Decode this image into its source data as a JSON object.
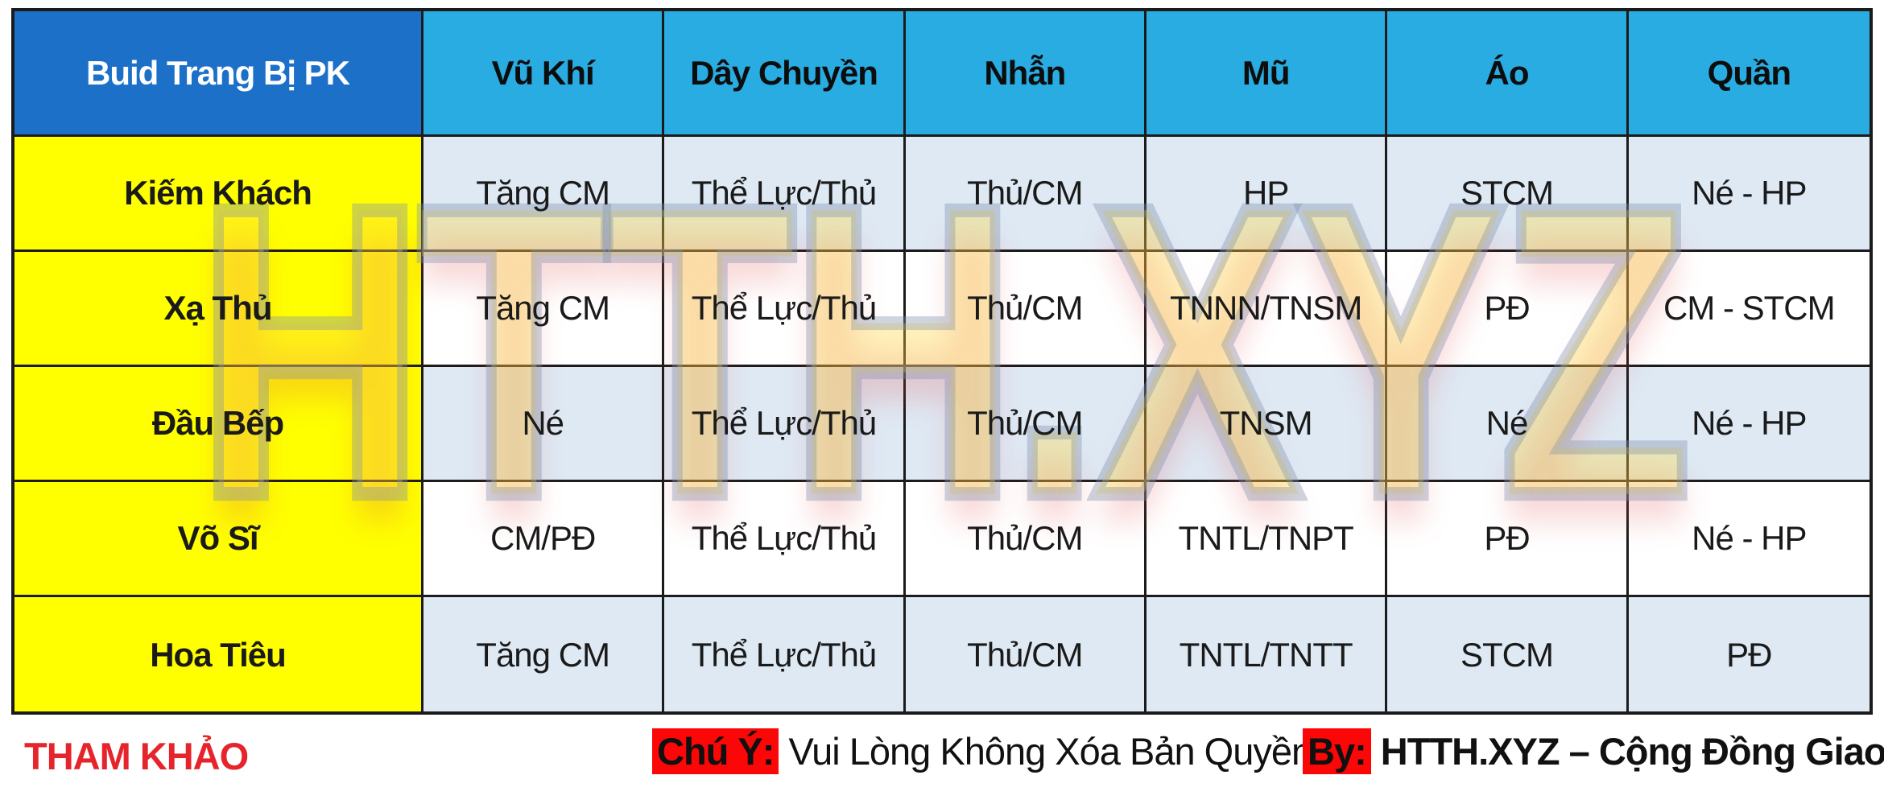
{
  "table": {
    "header": [
      "Buid Trang Bị PK",
      "Vũ Khí",
      "Dây Chuyền",
      "Nhẫn",
      "Mũ",
      "Áo",
      "Quần"
    ],
    "rows": [
      {
        "label": "Kiếm Khách",
        "cells": [
          "Tăng CM",
          "Thể Lực/Thủ",
          "Thủ/CM",
          "HP",
          "STCM",
          "Né - HP"
        ]
      },
      {
        "label": "Xạ Thủ",
        "cells": [
          "Tăng CM",
          "Thể Lực/Thủ",
          "Thủ/CM",
          "TNNN/TNSM",
          "PĐ",
          "CM - STCM"
        ]
      },
      {
        "label": "Đầu Bếp",
        "cells": [
          "Né",
          "Thể Lực/Thủ",
          "Thủ/CM",
          "TNSM",
          "Né",
          "Né - HP"
        ]
      },
      {
        "label": "Võ Sĩ",
        "cells": [
          "CM/PĐ",
          "Thể Lực/Thủ",
          "Thủ/CM",
          "TNTL/TNPT",
          "PĐ",
          "Né - HP"
        ]
      },
      {
        "label": "Hoa Tiêu",
        "cells": [
          "Tăng CM",
          "Thể Lực/Thủ",
          "Thủ/CM",
          "TNTL/TNTT",
          "STCM",
          "PĐ"
        ]
      }
    ]
  },
  "watermark": "HTTH.XYZ",
  "footer": {
    "reference": "THAM KHẢO",
    "note_label": "Chú Ý:",
    "note_text": "Vui Lòng Không Xóa Bản Quyền",
    "by_label": "By:",
    "by_text": "HTTH.XYZ – Cộng Đồng Giao Lưu HTTH"
  },
  "colors": {
    "header_dark_blue": "#1d70c8",
    "header_blue": "#29ace2",
    "label_yellow": "#ffff00",
    "row_alt_blue": "#dee9f4",
    "row_white": "#ffffff",
    "border_black": "#1b1b1b",
    "reference_red": "#e6242b",
    "highlight_red": "#fb0707",
    "watermark_yellow": "#ffdb40"
  },
  "chart_data": {
    "type": "table",
    "title": "Buid Trang Bị PK",
    "columns": [
      "Buid Trang Bị PK",
      "Vũ Khí",
      "Dây Chuyền",
      "Nhẫn",
      "Mũ",
      "Áo",
      "Quần"
    ],
    "rows": [
      [
        "Kiếm Khách",
        "Tăng CM",
        "Thể Lực/Thủ",
        "Thủ/CM",
        "HP",
        "STCM",
        "Né - HP"
      ],
      [
        "Xạ Thủ",
        "Tăng CM",
        "Thể Lực/Thủ",
        "Thủ/CM",
        "TNNN/TNSM",
        "PĐ",
        "CM - STCM"
      ],
      [
        "Đầu Bếp",
        "Né",
        "Thể Lực/Thủ",
        "Thủ/CM",
        "TNSM",
        "Né",
        "Né - HP"
      ],
      [
        "Võ Sĩ",
        "CM/PĐ",
        "Thể Lực/Thủ",
        "Thủ/CM",
        "TNTL/TNPT",
        "PĐ",
        "Né - HP"
      ],
      [
        "Hoa Tiêu",
        "Tăng CM",
        "Thể Lực/Thủ",
        "Thủ/CM",
        "TNTL/TNTT",
        "STCM",
        "PĐ"
      ]
    ],
    "layout_hints": {
      "header_fill": "#29ace2",
      "first_header_fill": "#1d70c8",
      "label_column_fill": "#ffff00",
      "alternating_row_fills": [
        "#dee9f4",
        "#ffffff"
      ],
      "watermark_text": "HTTH.XYZ"
    }
  }
}
